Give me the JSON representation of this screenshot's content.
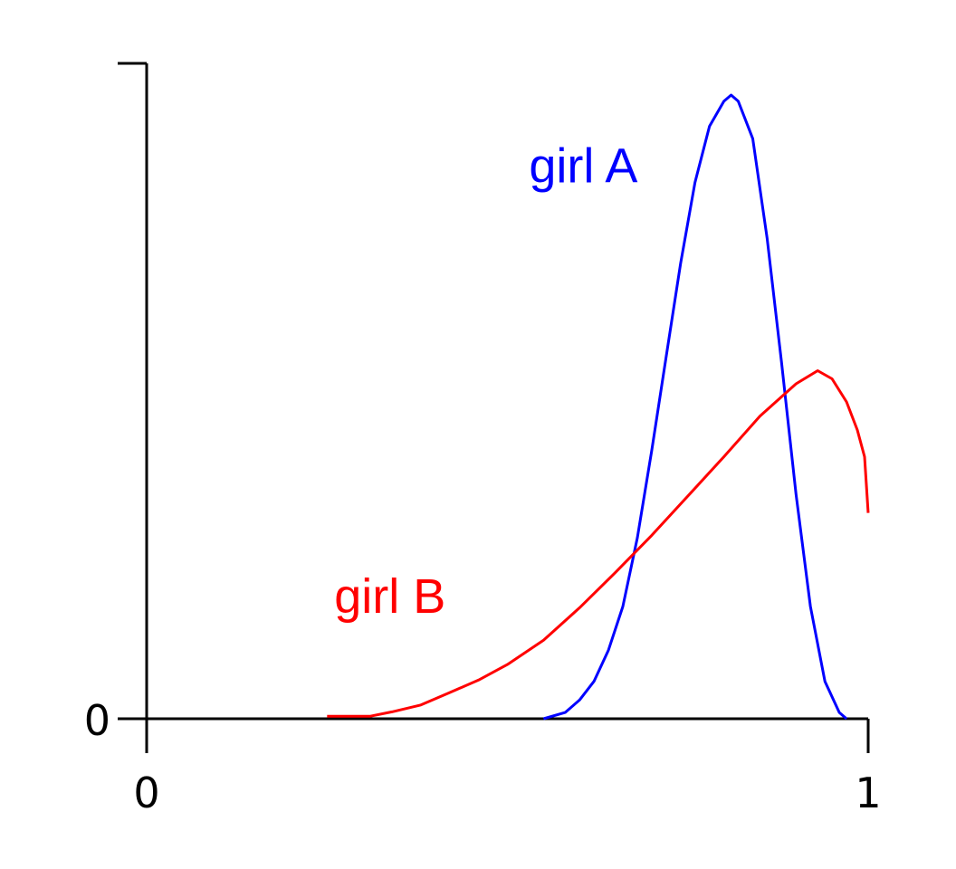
{
  "chart_data": {
    "type": "line",
    "title": "",
    "xlabel": "",
    "ylabel": "",
    "xlim": [
      0,
      1
    ],
    "ylim": [
      0,
      1
    ],
    "grid": false,
    "legend": "none",
    "x_ticks": [
      "0",
      "1"
    ],
    "y_ticks": [
      "0"
    ],
    "series": [
      {
        "name": "girl A",
        "color": "#0000ff",
        "label_at": [
          0.53,
          0.86
        ],
        "points": [
          [
            0.55,
            0.0
          ],
          [
            0.58,
            0.01
          ],
          [
            0.6,
            0.03
          ],
          [
            0.62,
            0.06
          ],
          [
            0.64,
            0.11
          ],
          [
            0.66,
            0.18
          ],
          [
            0.68,
            0.29
          ],
          [
            0.7,
            0.43
          ],
          [
            0.72,
            0.58
          ],
          [
            0.74,
            0.73
          ],
          [
            0.76,
            0.86
          ],
          [
            0.78,
            0.95
          ],
          [
            0.8,
            0.99
          ],
          [
            0.81,
            1.0
          ],
          [
            0.82,
            0.99
          ],
          [
            0.84,
            0.93
          ],
          [
            0.86,
            0.77
          ],
          [
            0.88,
            0.57
          ],
          [
            0.9,
            0.36
          ],
          [
            0.92,
            0.18
          ],
          [
            0.94,
            0.06
          ],
          [
            0.96,
            0.01
          ],
          [
            0.97,
            0.0
          ]
        ]
      },
      {
        "name": "girl B",
        "color": "#ff0000",
        "label_at": [
          0.26,
          0.17
        ],
        "points": [
          [
            0.25,
            0.004
          ],
          [
            0.31,
            0.004
          ],
          [
            0.34,
            0.011
          ],
          [
            0.38,
            0.022
          ],
          [
            0.42,
            0.042
          ],
          [
            0.46,
            0.062
          ],
          [
            0.5,
            0.087
          ],
          [
            0.55,
            0.126
          ],
          [
            0.6,
            0.178
          ],
          [
            0.65,
            0.235
          ],
          [
            0.7,
            0.294
          ],
          [
            0.75,
            0.357
          ],
          [
            0.8,
            0.42
          ],
          [
            0.85,
            0.485
          ],
          [
            0.9,
            0.537
          ],
          [
            0.93,
            0.558
          ],
          [
            0.95,
            0.545
          ],
          [
            0.97,
            0.508
          ],
          [
            0.985,
            0.463
          ],
          [
            0.995,
            0.42
          ],
          [
            1.0,
            0.33
          ]
        ]
      }
    ]
  }
}
